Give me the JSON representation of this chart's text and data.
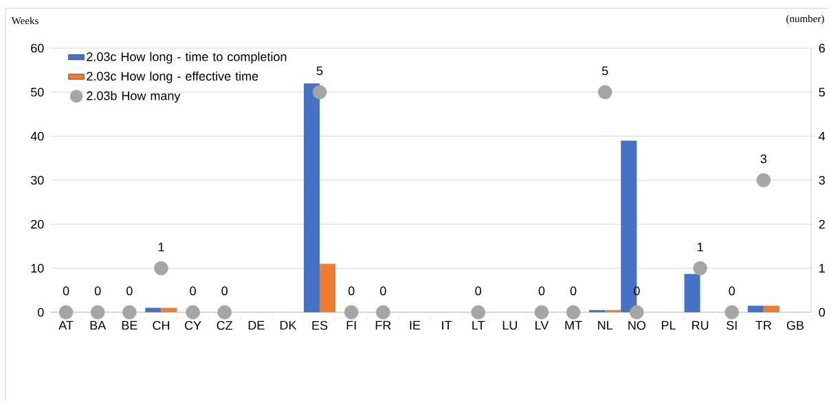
{
  "chart_data": {
    "type": "bar",
    "ylabel": "Weeks",
    "y2label": "(number)",
    "categories": [
      "AT",
      "BA",
      "BE",
      "CH",
      "CY",
      "CZ",
      "DE",
      "DK",
      "ES",
      "FI",
      "FR",
      "IE",
      "IT",
      "LT",
      "LU",
      "LV",
      "MT",
      "NL",
      "NO",
      "PL",
      "RU",
      "SI",
      "TR",
      "GB"
    ],
    "series": [
      {
        "name": "2.03c How long - time to completion",
        "color": "#4472c4",
        "values": [
          null,
          null,
          null,
          1,
          null,
          null,
          null,
          null,
          52,
          null,
          null,
          null,
          null,
          null,
          null,
          null,
          null,
          0.5,
          39,
          null,
          8.7,
          null,
          1.5,
          null
        ]
      },
      {
        "name": "2.03c How long - effective time",
        "color": "#ed7d31",
        "values": [
          null,
          null,
          null,
          1,
          null,
          null,
          null,
          null,
          11,
          null,
          null,
          null,
          null,
          null,
          null,
          null,
          null,
          0.5,
          null,
          null,
          null,
          null,
          1.5,
          null
        ]
      },
      {
        "name": "2.03b How many",
        "type": "scatter",
        "axis": "y2",
        "color": "#a5a5a5",
        "values": [
          0,
          0,
          0,
          1,
          0,
          0,
          null,
          null,
          5,
          0,
          0,
          null,
          null,
          0,
          null,
          0,
          0,
          5,
          0,
          null,
          1,
          0,
          3,
          null
        ],
        "value_labels": [
          "0",
          "0",
          "0",
          "1",
          "0",
          "0",
          null,
          null,
          "5",
          "0",
          "0",
          null,
          null,
          "0",
          null,
          "0",
          "0",
          "5",
          "0",
          null,
          "1",
          "0",
          "3",
          null
        ]
      }
    ],
    "ylim": [
      0,
      60
    ],
    "yticks": [
      0,
      10,
      20,
      30,
      40,
      50,
      60
    ],
    "y2lim": [
      0,
      6
    ],
    "y2ticks": [
      0,
      1,
      2,
      3,
      4,
      5,
      6
    ],
    "grid": "y",
    "legend": "top left"
  }
}
